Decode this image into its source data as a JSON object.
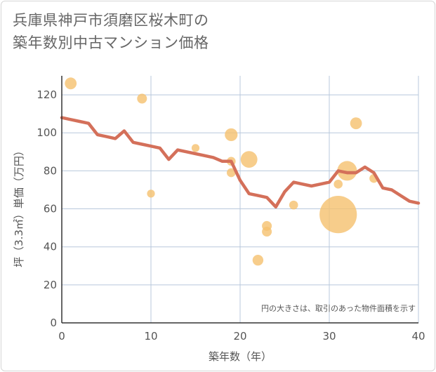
{
  "title_line1": "兵庫県神戸市須磨区桜木町の",
  "title_line2": "築年数別中古マンション価格",
  "chart_data": {
    "type": "scatter",
    "title": "兵庫県神戸市須磨区桜木町の築年数別中古マンション価格",
    "xlabel": "築年数（年）",
    "ylabel": "坪（3.3㎡）単価（万円）",
    "xlim": [
      0,
      40
    ],
    "ylim": [
      0,
      130
    ],
    "xticks": [
      0,
      10,
      20,
      30,
      40
    ],
    "yticks": [
      0,
      20,
      40,
      60,
      80,
      100,
      120
    ],
    "grid": true,
    "annotation": "円の大きさは、取引のあった物件面積を示す",
    "scatter": [
      {
        "x": 1,
        "y": 126,
        "size": 1.2
      },
      {
        "x": 9,
        "y": 118,
        "size": 1.0
      },
      {
        "x": 10,
        "y": 68,
        "size": 0.8
      },
      {
        "x": 15,
        "y": 92,
        "size": 0.8
      },
      {
        "x": 19,
        "y": 99,
        "size": 1.3
      },
      {
        "x": 19,
        "y": 85,
        "size": 0.9
      },
      {
        "x": 19,
        "y": 79,
        "size": 0.9
      },
      {
        "x": 21,
        "y": 86,
        "size": 1.7
      },
      {
        "x": 22,
        "y": 33,
        "size": 1.1
      },
      {
        "x": 23,
        "y": 51,
        "size": 1.0
      },
      {
        "x": 23,
        "y": 48,
        "size": 1.0
      },
      {
        "x": 26,
        "y": 62,
        "size": 0.9
      },
      {
        "x": 31,
        "y": 57,
        "size": 3.8
      },
      {
        "x": 31,
        "y": 73,
        "size": 0.9
      },
      {
        "x": 32,
        "y": 80,
        "size": 2.0
      },
      {
        "x": 33,
        "y": 105,
        "size": 1.2
      },
      {
        "x": 35,
        "y": 76,
        "size": 0.9
      }
    ],
    "line": {
      "x": [
        0,
        1,
        2,
        3,
        4,
        5,
        6,
        7,
        8,
        9,
        10,
        11,
        12,
        13,
        14,
        15,
        16,
        17,
        18,
        19,
        20,
        21,
        22,
        23,
        24,
        25,
        26,
        27,
        28,
        29,
        30,
        31,
        32,
        33,
        34,
        35,
        36,
        37,
        38,
        39,
        40
      ],
      "y": [
        108,
        107,
        106,
        105,
        99,
        98,
        97,
        101,
        95,
        94,
        93,
        92,
        86,
        91,
        90,
        89,
        88,
        87,
        85,
        85,
        75,
        68,
        67,
        66,
        61,
        69,
        74,
        73,
        72,
        73,
        74,
        80,
        79,
        79,
        82,
        79,
        71,
        70,
        67,
        64,
        63
      ]
    },
    "colors": {
      "line": "#d4705a",
      "bubble": "#f5c06e",
      "grid": "#b8c8dc",
      "axis": "#333333"
    }
  }
}
